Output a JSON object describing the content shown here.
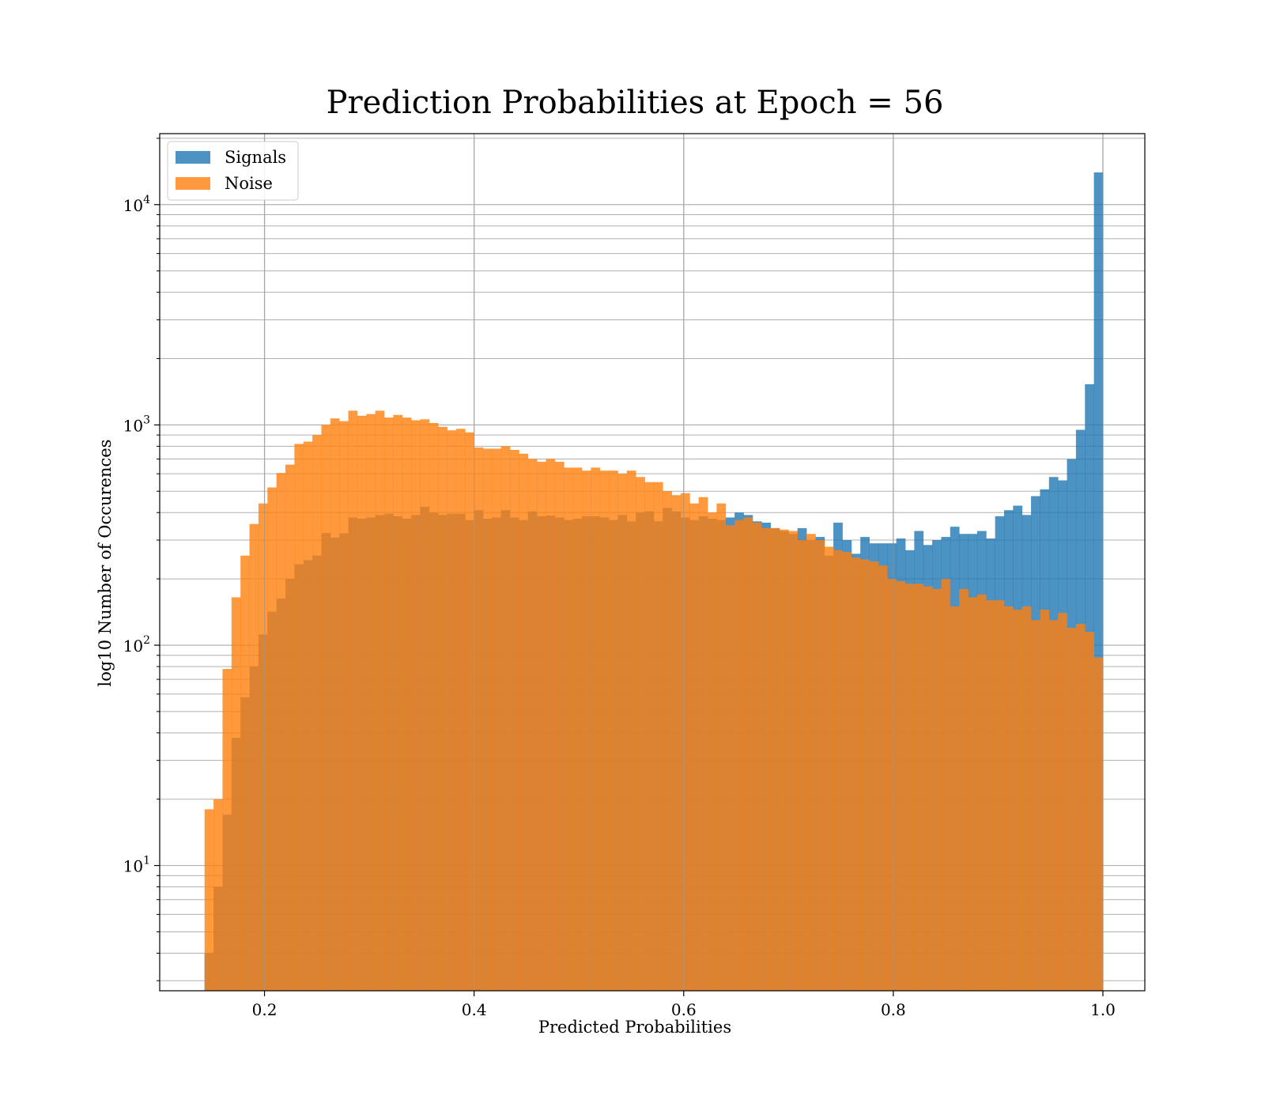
{
  "chart_data": {
    "type": "bar",
    "title": "Prediction Probabilities at Epoch = 56",
    "xlabel": "Predicted Probabilities",
    "ylabel": "log10 Number of Occurences",
    "xlim": [
      0.1,
      1.04
    ],
    "ylim": [
      2.7,
      21000
    ],
    "yscale": "log",
    "grid": true,
    "legend_position": "top-left",
    "x_ticks": [
      0.2,
      0.4,
      0.6,
      0.8,
      1.0
    ],
    "x_tick_labels": [
      "0.2",
      "0.4",
      "0.6",
      "0.8",
      "1.0"
    ],
    "y_ticks": [
      10,
      100,
      1000,
      10000
    ],
    "y_tick_bases": [
      "10",
      "10",
      "10",
      "10"
    ],
    "y_tick_exponents": [
      "1",
      "2",
      "3",
      "4"
    ],
    "bin_start": 0.1428,
    "bin_end": 1.0,
    "series": [
      {
        "name": "Signals",
        "color": "#1f77b4",
        "values": [
          4,
          8,
          17,
          38,
          58,
          80,
          112,
          142,
          163,
          200,
          233,
          243,
          255,
          323,
          308,
          322,
          380,
          375,
          380,
          390,
          395,
          385,
          375,
          390,
          425,
          400,
          390,
          395,
          395,
          370,
          410,
          375,
          380,
          410,
          380,
          370,
          405,
          385,
          388,
          380,
          370,
          375,
          385,
          385,
          380,
          370,
          390,
          365,
          400,
          405,
          365,
          420,
          405,
          380,
          370,
          385,
          375,
          370,
          380,
          400,
          390,
          365,
          360,
          340,
          330,
          320,
          340,
          300,
          310,
          255,
          360,
          300,
          260,
          310,
          290,
          290,
          290,
          305,
          270,
          330,
          285,
          300,
          310,
          345,
          320,
          320,
          330,
          305,
          385,
          410,
          430,
          390,
          475,
          510,
          580,
          560,
          700,
          950,
          1530,
          14000
        ]
      },
      {
        "name": "Noise",
        "color": "#ff7f0e",
        "values": [
          18,
          20,
          78,
          165,
          255,
          355,
          440,
          520,
          605,
          660,
          820,
          840,
          900,
          1000,
          1070,
          1040,
          1160,
          1100,
          1120,
          1160,
          1080,
          1110,
          1080,
          1050,
          1060,
          1020,
          980,
          945,
          960,
          925,
          790,
          780,
          780,
          800,
          770,
          740,
          700,
          680,
          700,
          680,
          640,
          640,
          620,
          640,
          620,
          620,
          600,
          620,
          580,
          550,
          550,
          500,
          480,
          490,
          440,
          470,
          400,
          440,
          350,
          370,
          380,
          360,
          340,
          340,
          335,
          330,
          300,
          320,
          300,
          280,
          270,
          265,
          250,
          245,
          240,
          230,
          200,
          195,
          190,
          190,
          185,
          180,
          200,
          150,
          180,
          165,
          170,
          160,
          160,
          150,
          145,
          150,
          130,
          145,
          130,
          140,
          120,
          125,
          115,
          88
        ]
      }
    ]
  }
}
